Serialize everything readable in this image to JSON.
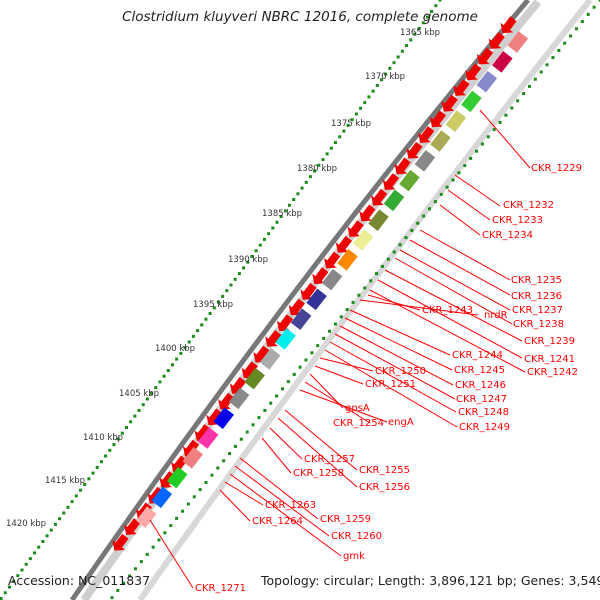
{
  "title": "Clostridium kluyveri NBRC 12016, complete genome",
  "accession": "Accession: NC_011837",
  "topology": "Topology: circular; Length: 3,896,121 bp; Genes: 3,549",
  "kbp_ticks": [
    "1365 kbp",
    "1370 kbp",
    "1375 kbp",
    "1380 kbp",
    "1385 kbp",
    "1390 kbp",
    "1395 kbp",
    "1400 kbp",
    "1405 kbp",
    "1410 kbp",
    "1415 kbp",
    "1420 kbp"
  ],
  "gene_labels": [
    "CKR_1229",
    "CKR_1232",
    "CKR_1233",
    "CKR_1234",
    "CKR_1235",
    "CKR_1236",
    "CKR_1237",
    "CKR_1238",
    "CKR_1239",
    "CKR_1241",
    "CKR_1242",
    "CKR_1243",
    "nrdR",
    "CKR_1244",
    "CKR_1245",
    "CKR_1246",
    "CKR_1247",
    "CKR_1248",
    "CKR_1249",
    "CKR_1250",
    "CKR_1251",
    "gpsA",
    "CKR_1254",
    "engA",
    "CKR_1255",
    "CKR_1256",
    "CKR_1257",
    "CKR_1258",
    "CKR_1259",
    "CKR_1260",
    "gmk",
    "CKR_1263",
    "CKR_1264",
    "CKR_1271"
  ],
  "colors": {
    "label_line": "#ff0000",
    "gene_arrow": "#ee0000",
    "tick_dots": "#1a8a1a",
    "backbone": "#888888"
  }
}
